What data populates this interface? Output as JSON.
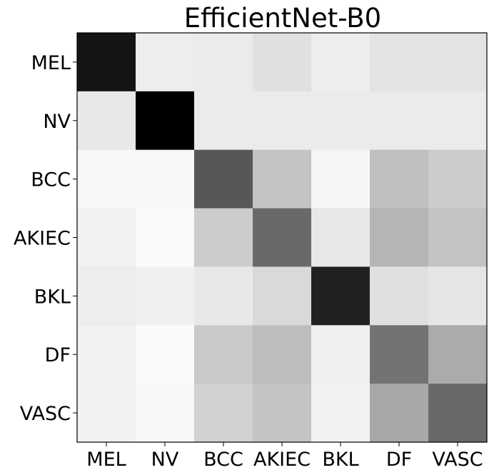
{
  "chart_data": {
    "type": "heatmap",
    "title": "EfficientNet-B0",
    "xlabel": "",
    "ylabel": "",
    "x_categories": [
      "MEL",
      "NV",
      "BCC",
      "AKIEC",
      "BKL",
      "DF",
      "VASC"
    ],
    "y_categories": [
      "MEL",
      "NV",
      "BCC",
      "AKIEC",
      "BKL",
      "DF",
      "VASC"
    ],
    "colormap": "greys",
    "value_range": [
      0,
      1
    ],
    "values": [
      [
        0.92,
        0.07,
        0.08,
        0.12,
        0.07,
        0.11,
        0.11
      ],
      [
        0.09,
        1.0,
        0.08,
        0.08,
        0.08,
        0.08,
        0.08
      ],
      [
        0.03,
        0.03,
        0.66,
        0.23,
        0.04,
        0.25,
        0.2
      ],
      [
        0.05,
        0.02,
        0.2,
        0.59,
        0.09,
        0.29,
        0.23
      ],
      [
        0.07,
        0.06,
        0.09,
        0.15,
        0.87,
        0.12,
        0.1
      ],
      [
        0.05,
        0.02,
        0.21,
        0.26,
        0.06,
        0.55,
        0.33
      ],
      [
        0.05,
        0.03,
        0.18,
        0.23,
        0.05,
        0.34,
        0.59
      ]
    ],
    "grid": false,
    "colorbar": false
  }
}
